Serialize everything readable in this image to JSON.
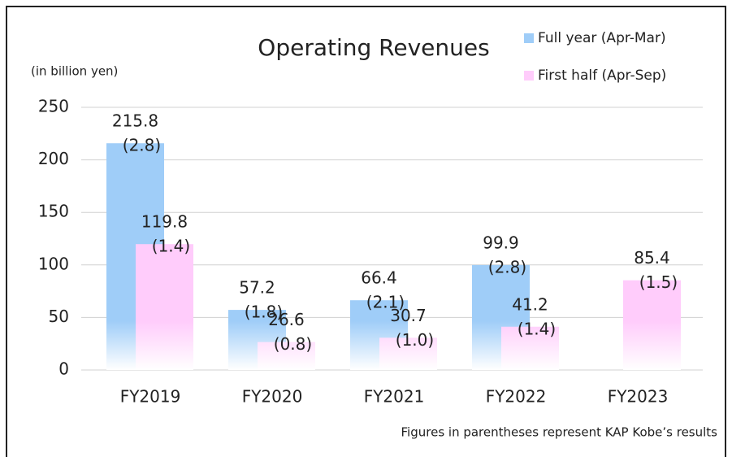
{
  "chart_data": {
    "type": "bar",
    "title": "Operating Revenues",
    "subtitle": "(in billion yen)",
    "note": "Figures in parentheses represent KAP Kobe’s results",
    "categories": [
      "FY2019",
      "FY2020",
      "FY2021",
      "FY2022",
      "FY2023"
    ],
    "series": [
      {
        "name": "Full year (Apr-Mar)",
        "color": "#9fcdf8",
        "values": [
          215.8,
          57.2,
          66.4,
          99.9,
          null
        ],
        "kap_value_labels": [
          "(2.8)",
          "(1.8)",
          "(2.1)",
          "(2.8)",
          null
        ]
      },
      {
        "name": "First half (Apr-Sep)",
        "color": "#ffccfb",
        "values": [
          119.8,
          26.6,
          30.7,
          41.2,
          85.4
        ],
        "kap_value_labels": [
          "(1.4)",
          "(0.8)",
          "(1.0)",
          "(1.4)",
          "(1.5)"
        ]
      }
    ],
    "ylim": [
      0,
      250
    ],
    "yticks": [
      0,
      50,
      100,
      150,
      200,
      250
    ],
    "grid": true,
    "legend": "top-right"
  }
}
